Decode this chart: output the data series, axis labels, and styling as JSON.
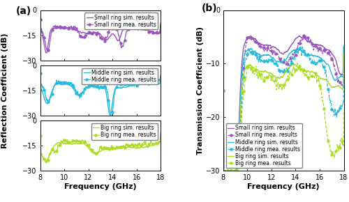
{
  "freq_min": 8,
  "freq_max": 18,
  "xlim": [
    8,
    18
  ],
  "xticks": [
    8,
    10,
    12,
    14,
    16,
    18
  ],
  "panel_a_ylim": [
    -30,
    0
  ],
  "panel_a_yticks": [
    -30,
    -15,
    0
  ],
  "panel_b_ylim": [
    -30,
    0
  ],
  "panel_b_yticks": [
    -30,
    -20,
    -10,
    0
  ],
  "xlabel": "Frequency (GHz)",
  "panel_a_ylabel": "Reflection Coefficient (dB)",
  "panel_b_ylabel": "Transmission Coefficient (dB)",
  "small_ring_color": "#9955BB",
  "middle_ring_color": "#22BBDD",
  "big_ring_color": "#AADD22",
  "panel_label_a": "(a)",
  "panel_label_b": "(b)",
  "bg_color": "#F5F5F0",
  "tick_fontsize": 7,
  "label_fontsize": 8,
  "legend_fontsize": 5.5
}
